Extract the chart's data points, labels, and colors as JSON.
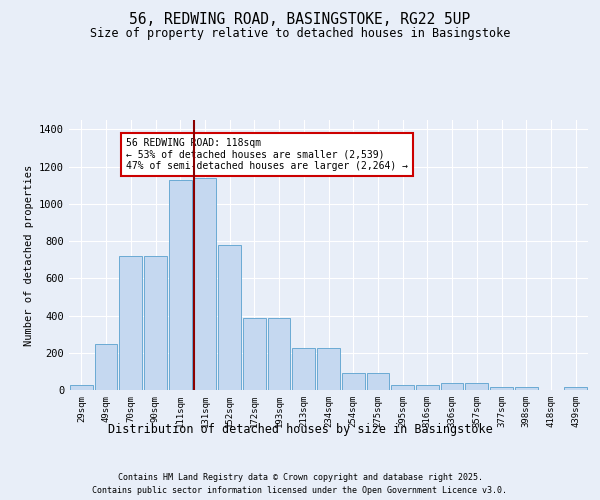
{
  "title_line1": "56, REDWING ROAD, BASINGSTOKE, RG22 5UP",
  "title_line2": "Size of property relative to detached houses in Basingstoke",
  "xlabel": "Distribution of detached houses by size in Basingstoke",
  "ylabel": "Number of detached properties",
  "categories": [
    "29sqm",
    "49sqm",
    "70sqm",
    "90sqm",
    "111sqm",
    "131sqm",
    "152sqm",
    "172sqm",
    "193sqm",
    "213sqm",
    "234sqm",
    "254sqm",
    "275sqm",
    "295sqm",
    "316sqm",
    "336sqm",
    "357sqm",
    "377sqm",
    "398sqm",
    "418sqm",
    "439sqm"
  ],
  "values": [
    25,
    245,
    720,
    720,
    1130,
    1140,
    780,
    385,
    385,
    225,
    225,
    90,
    90,
    25,
    25,
    40,
    40,
    15,
    15,
    0,
    15
  ],
  "bar_color": "#c5d8f0",
  "bar_edge_color": "#6aaad4",
  "background_color": "#e8eef8",
  "grid_color": "#ffffff",
  "vline_x": 4.55,
  "vline_color": "#8b0000",
  "annotation_line1": "56 REDWING ROAD: 118sqm",
  "annotation_line2": "← 53% of detached houses are smaller (2,539)",
  "annotation_line3": "47% of semi-detached houses are larger (2,264) →",
  "annotation_box_color": "#ffffff",
  "annotation_box_edge": "#cc0000",
  "footer_line1": "Contains HM Land Registry data © Crown copyright and database right 2025.",
  "footer_line2": "Contains public sector information licensed under the Open Government Licence v3.0.",
  "ylim": [
    0,
    1450
  ],
  "yticks": [
    0,
    200,
    400,
    600,
    800,
    1000,
    1200,
    1400
  ]
}
